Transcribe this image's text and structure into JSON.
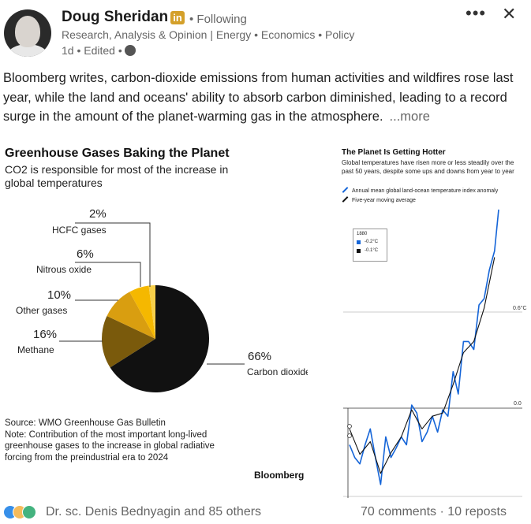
{
  "post": {
    "author": "Doug Sheridan",
    "badge": "in",
    "following": "• Following",
    "headline": "Research, Analysis & Opinion | Energy • Economics • Policy",
    "meta": "1d • Edited •",
    "text": "Bloomberg writes, carbon-dioxide emissions from human activities and wildfires rose last year, while the land and oceans' ability to absorb carbon diminished, leading to a record surge in the amount of the planet-warming gas in the atmosphere.",
    "see_more": "...more",
    "menu_icon": "more-horizontal-icon",
    "close_icon": "close-icon"
  },
  "left_chart": {
    "title": "Greenhouse Gases Baking the Planet",
    "subtitle": "CO2 is responsible for most of the increase in global temperatures",
    "source": "Source: WMO Greenhouse Gas Bulletin",
    "note": "Note: Contribution of the most important long-lived greenhouse gases to the increase in global radiative forcing from the preindustrial era to 2024",
    "brand": "Bloomberg"
  },
  "right_chart": {
    "title": "The Planet Is Getting Hotter",
    "subtitle": "Global temperatures have risen more or less steadily over the past 50 years, despite some ups and downs from year to year",
    "legend_annual": "Annual mean global land-ocean temperature index anomaly",
    "legend_moving": "Five-year moving average",
    "tooltip_year": "1880",
    "tooltip_annual": "-0.2°C",
    "tooltip_moving": "-0.1°C",
    "y_top_label": "0.6°C",
    "y_zero_label": "0.0",
    "annual_color": "#1565d8",
    "moving_color": "#111111"
  },
  "chart_data": [
    {
      "type": "pie",
      "title": "Greenhouse Gases Baking the Planet",
      "subtitle": "CO2 is responsible for most of the increase in global temperatures",
      "slices": [
        {
          "label": "Carbon dioxide",
          "pct_label": "66%",
          "value": 66,
          "color": "#111111"
        },
        {
          "label": "Methane",
          "pct_label": "16%",
          "value": 16,
          "color": "#7a5a0c"
        },
        {
          "label": "Other gases",
          "pct_label": "10%",
          "value": 10,
          "color": "#d99e10"
        },
        {
          "label": "Nitrous oxide",
          "pct_label": "6%",
          "value": 6,
          "color": "#f5b800"
        },
        {
          "label": "HCFC gases",
          "pct_label": "2%",
          "value": 2,
          "color": "#f7cf4a"
        }
      ]
    },
    {
      "type": "line",
      "title": "The Planet Is Getting Hotter",
      "x_range": [
        1880,
        2024
      ],
      "ylim": [
        -0.5,
        1.3
      ],
      "series": [
        {
          "name": "Annual mean global land-ocean temperature index anomaly",
          "color": "#1565d8",
          "x": [
            1880,
            1885,
            1890,
            1895,
            1900,
            1905,
            1910,
            1915,
            1920,
            1925,
            1930,
            1935,
            1940,
            1945,
            1950,
            1955,
            1960,
            1965,
            1970,
            1975,
            1980,
            1985,
            1990,
            1995,
            2000,
            2005,
            2010,
            2015,
            2020,
            2024
          ],
          "values": [
            -0.2,
            -0.28,
            -0.32,
            -0.2,
            -0.1,
            -0.28,
            -0.45,
            -0.15,
            -0.28,
            -0.22,
            -0.15,
            -0.2,
            0.05,
            0.0,
            -0.18,
            -0.12,
            -0.02,
            -0.12,
            0.02,
            -0.02,
            0.26,
            0.12,
            0.45,
            0.45,
            0.4,
            0.68,
            0.72,
            0.9,
            1.02,
            1.28
          ]
        },
        {
          "name": "Five-year moving average",
          "color": "#111111",
          "x": [
            1880,
            1890,
            1900,
            1910,
            1920,
            1930,
            1940,
            1950,
            1960,
            1970,
            1980,
            1990,
            2000,
            2010,
            2020
          ],
          "values": [
            -0.1,
            -0.26,
            -0.18,
            -0.38,
            -0.25,
            -0.15,
            0.02,
            -0.1,
            -0.02,
            0.0,
            0.18,
            0.38,
            0.45,
            0.66,
            0.98
          ]
        }
      ]
    }
  ],
  "footer": {
    "reactors": "Dr. sc. Denis Bednyagin and 85 others",
    "stats": "70 comments · 10 reposts"
  }
}
